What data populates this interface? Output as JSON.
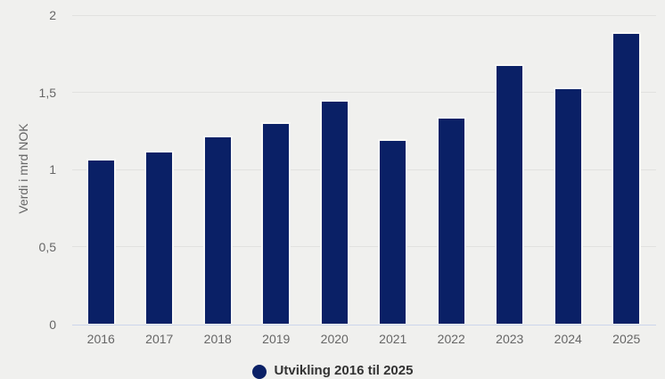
{
  "chart_data": {
    "type": "bar",
    "title": "",
    "categories": [
      "2016",
      "2017",
      "2018",
      "2019",
      "2020",
      "2021",
      "2022",
      "2023",
      "2024",
      "2025"
    ],
    "values": [
      1.07,
      1.12,
      1.22,
      1.31,
      1.45,
      1.2,
      1.34,
      1.68,
      1.53,
      1.89
    ],
    "xlabel": "",
    "ylabel": "Verdi i mrd NOK",
    "ylim": [
      0,
      2
    ],
    "yticks": [
      0,
      0.5,
      1,
      1.5,
      2
    ],
    "ytick_labels": [
      "0",
      "0,5",
      "1",
      "1,5",
      "2"
    ],
    "grid": true,
    "legend": "Utvikling 2016 til 2025",
    "legend_position": "bottom-center",
    "colors": {
      "bar": "#0a2066",
      "bar_border": "#f7f7f5",
      "background": "#f0f0ee",
      "gridline": "#e1e1df",
      "axis_line": "#ccd6eb",
      "tick_label": "#666666",
      "axis_title": "#666666",
      "legend_text": "#333333"
    }
  }
}
